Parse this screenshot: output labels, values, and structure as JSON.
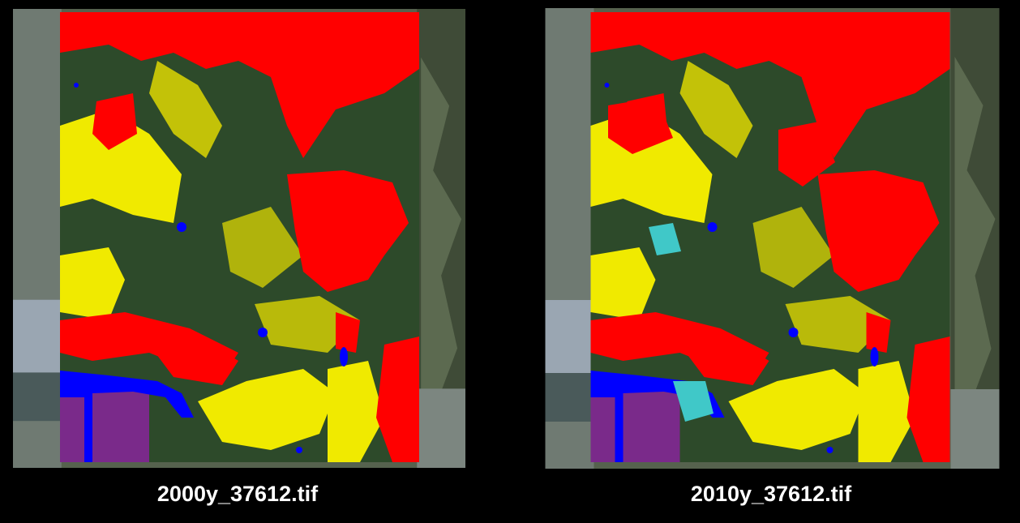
{
  "panels": [
    {
      "label": "2000y_37612.tif"
    },
    {
      "label": "2010y_37612.tif"
    }
  ]
}
